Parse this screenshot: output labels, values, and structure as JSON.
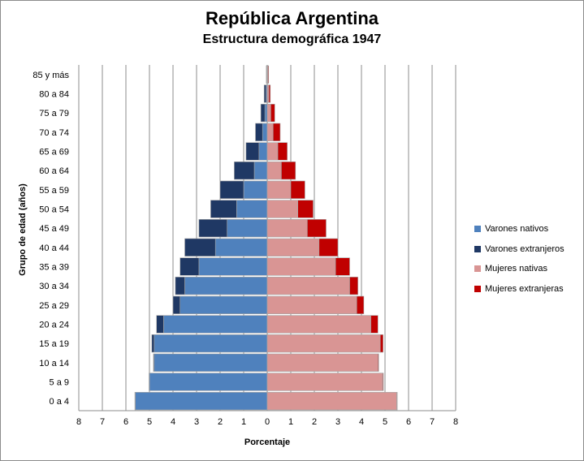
{
  "title": "República Argentina",
  "subtitle": "Estructura demográfica 1947",
  "chart_data": {
    "type": "bar",
    "orientation": "horizontal-population-pyramid",
    "categories": [
      "0 a 4",
      "5 a 9",
      "10 a 14",
      "15 a 19",
      "20 a 24",
      "25 a 29",
      "30 a 34",
      "35 a 39",
      "40 a 44",
      "45 a 49",
      "50 a 54",
      "55 a 59",
      "60 a 64",
      "65 a 69",
      "70 a 74",
      "75 a 79",
      "80 a 84",
      "85 y más"
    ],
    "series": [
      {
        "name": "Varones nativos",
        "color": "#4f81bd",
        "side": "left",
        "values": [
          5.6,
          5.0,
          4.8,
          4.8,
          4.4,
          3.7,
          3.5,
          2.9,
          2.2,
          1.7,
          1.3,
          1.0,
          0.55,
          0.35,
          0.2,
          0.1,
          0.05,
          0.02
        ]
      },
      {
        "name": "Varones extranjeros",
        "color": "#1f3864",
        "side": "left",
        "values": [
          0.02,
          0.02,
          0.03,
          0.1,
          0.3,
          0.3,
          0.4,
          0.8,
          1.3,
          1.2,
          1.1,
          1.0,
          0.85,
          0.55,
          0.3,
          0.17,
          0.08,
          0.02
        ]
      },
      {
        "name": "Mujeres nativas",
        "color": "#d99594",
        "side": "right",
        "values": [
          5.5,
          4.9,
          4.7,
          4.8,
          4.4,
          3.8,
          3.5,
          2.9,
          2.2,
          1.7,
          1.3,
          1.0,
          0.6,
          0.45,
          0.25,
          0.15,
          0.07,
          0.03
        ]
      },
      {
        "name": "Mujeres extranjeras",
        "color": "#c00000",
        "side": "right",
        "values": [
          0.02,
          0.03,
          0.03,
          0.12,
          0.3,
          0.3,
          0.35,
          0.6,
          0.8,
          0.8,
          0.65,
          0.6,
          0.6,
          0.4,
          0.3,
          0.17,
          0.06,
          0.03
        ]
      }
    ],
    "xlabel": "Porcentaje",
    "ylabel": "Grupo de edad (años)",
    "xticks": [
      "8",
      "7",
      "6",
      "5",
      "4",
      "3",
      "2",
      "1",
      "0",
      "1",
      "2",
      "3",
      "4",
      "5",
      "6",
      "7",
      "8"
    ],
    "xlim": [
      -8,
      8
    ],
    "grid": "vertical",
    "legend": "right"
  }
}
